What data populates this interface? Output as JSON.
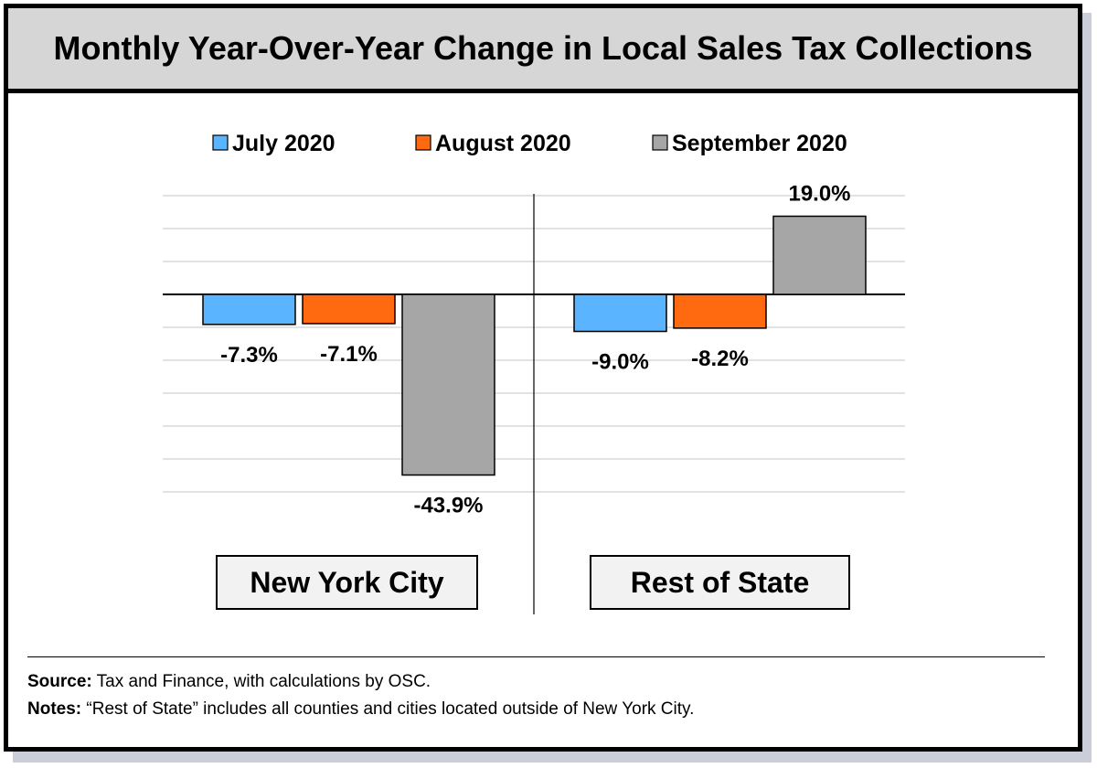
{
  "title": "Monthly Year-Over-Year Change in Local Sales Tax Collections",
  "legend": [
    {
      "label": "July 2020",
      "color": "#5ab4ff"
    },
    {
      "label": "August 2020",
      "color": "#ff6a10"
    },
    {
      "label": "September 2020",
      "color": "#a6a6a6"
    }
  ],
  "chart_data": {
    "type": "bar",
    "title": "Monthly Year-Over-Year Change in Local Sales Tax Collections",
    "xlabel": "",
    "ylabel": "",
    "ylim": [
      -60,
      30
    ],
    "grid": true,
    "legend_position": "top",
    "categories": [
      "New York City",
      "Rest of State"
    ],
    "series": [
      {
        "name": "July 2020",
        "values": [
          -7.3,
          -9.0
        ],
        "labels": [
          "-7.3%",
          "-9.0%"
        ],
        "color": "#5ab4ff"
      },
      {
        "name": "August 2020",
        "values": [
          -7.1,
          -8.2
        ],
        "labels": [
          "-7.1%",
          "-8.2%"
        ],
        "color": "#ff6a10"
      },
      {
        "name": "September 2020",
        "values": [
          -43.9,
          19.0
        ],
        "labels": [
          "-43.9%",
          "19.0%"
        ],
        "color": "#a6a6a6"
      }
    ]
  },
  "footer": {
    "source_label": "Source:",
    "source_text": " Tax and Finance, with calculations by OSC.",
    "notes_label": "Notes:",
    "notes_text": " “Rest of State” includes all counties and cities located outside of New York City."
  }
}
